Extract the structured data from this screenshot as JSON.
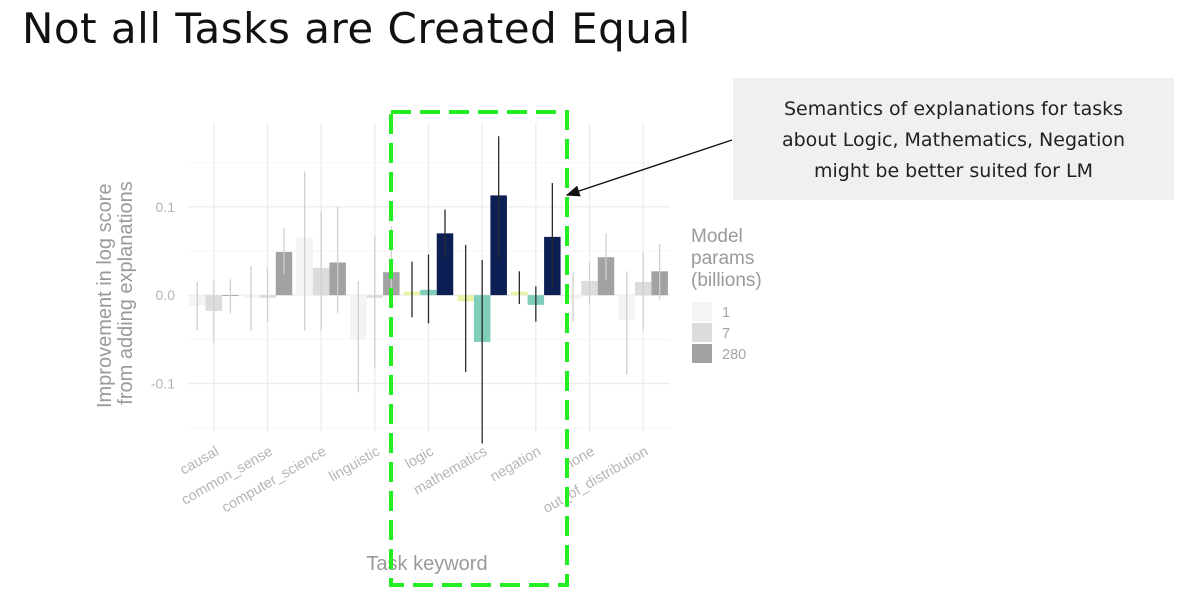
{
  "slide": {
    "title": "Not all Tasks are Created Equal",
    "callout_lines": [
      "Semantics of explanations for tasks",
      "about Logic, Mathematics, Negation",
      "might be better suited for LM"
    ]
  },
  "highlight": {
    "color": "#22ee22",
    "categories": [
      "logic",
      "mathematics",
      "negation"
    ]
  },
  "chart_data": {
    "type": "bar",
    "title": "",
    "xlabel": "Task keyword",
    "ylabel": "Improvement in log score from adding explanations",
    "ylim": [
      -0.155,
      0.195
    ],
    "yticks": [
      -0.1,
      0.0,
      0.1
    ],
    "ytick_labels": [
      "-0.1",
      "0.0",
      "0.1"
    ],
    "grid": true,
    "legend_title": "Model params (billions)",
    "legend_position": "right",
    "categories": [
      "causal",
      "common_sense",
      "computer_science",
      "linguistic",
      "logic",
      "mathematics",
      "negation",
      "none",
      "out_of_distribution"
    ],
    "series": [
      {
        "name": "1",
        "values": [
          -0.012,
          -0.003,
          0.065,
          -0.05,
          0.004,
          -0.007,
          0.004,
          -0.004,
          -0.028
        ],
        "err_low": [
          -0.04,
          -0.04,
          -0.04,
          -0.11,
          -0.025,
          -0.087,
          -0.01,
          -0.03,
          -0.09
        ],
        "err_high": [
          0.015,
          0.033,
          0.14,
          0.016,
          0.038,
          0.057,
          0.027,
          0.026,
          0.027
        ]
      },
      {
        "name": "7",
        "values": [
          -0.018,
          -0.003,
          0.031,
          -0.003,
          0.006,
          -0.053,
          -0.011,
          0.016,
          0.015
        ],
        "err_low": [
          -0.054,
          -0.03,
          -0.04,
          -0.082,
          -0.032,
          -0.168,
          -0.03,
          -0.01,
          -0.04
        ],
        "err_high": [
          0.017,
          0.03,
          0.095,
          0.067,
          0.046,
          0.04,
          0.01,
          0.037,
          0.048
        ]
      },
      {
        "name": "280",
        "values": [
          -0.001,
          0.049,
          0.037,
          0.026,
          0.07,
          0.113,
          0.066,
          0.043,
          0.027
        ],
        "err_low": [
          -0.021,
          0.024,
          -0.02,
          -0.01,
          0.042,
          0.04,
          0.01,
          0.017,
          -0.005
        ],
        "err_high": [
          0.018,
          0.076,
          0.1,
          0.078,
          0.097,
          0.18,
          0.127,
          0.07,
          0.058
        ]
      }
    ],
    "series_colors": {
      "default": [
        "#f4f4f4",
        "#dcdcdc",
        "#a2a2a2"
      ],
      "highlight": [
        "#e9f3a8",
        "#7fcdbb",
        "#0c1f55"
      ]
    }
  }
}
